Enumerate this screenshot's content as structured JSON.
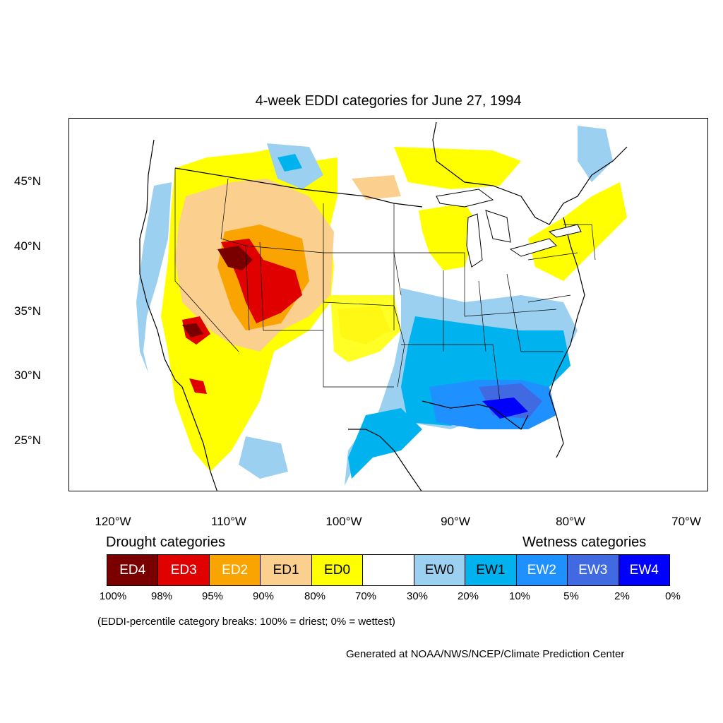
{
  "title": "4-week EDDI categories for June 27, 1994",
  "map": {
    "lat_ticks": [
      "45°N",
      "40°N",
      "35°N",
      "30°N",
      "25°N"
    ],
    "lon_ticks": [
      "120°W",
      "110°W",
      "100°W",
      "90°W",
      "80°W",
      "70°W"
    ],
    "colors": {
      "ED4": "#7a0000",
      "ED3": "#e00000",
      "ED2": "#f9a400",
      "ED1": "#fbd08e",
      "ED0": "#ffff00",
      "neutral": "#ffffff",
      "EW0": "#9bd0f0",
      "EW1": "#00b2ee",
      "EW2": "#1e90ff",
      "EW3": "#4169e1",
      "EW4": "#0000ff"
    }
  },
  "legend": {
    "drought_heading": "Drought categories",
    "wetness_heading": "Wetness categories",
    "categories": [
      {
        "label": "ED4",
        "color": "#7a0000",
        "text_color": "#ffffff"
      },
      {
        "label": "ED3",
        "color": "#e00000",
        "text_color": "#ffffff"
      },
      {
        "label": "ED2",
        "color": "#f9a400",
        "text_color": "#ffffff"
      },
      {
        "label": "ED1",
        "color": "#fbd08e",
        "text_color": "#000000"
      },
      {
        "label": "ED0",
        "color": "#ffff00",
        "text_color": "#000000"
      },
      {
        "label": "",
        "color": "#ffffff",
        "text_color": "#000000"
      },
      {
        "label": "EW0",
        "color": "#9bd0f0",
        "text_color": "#000000"
      },
      {
        "label": "EW1",
        "color": "#00b2ee",
        "text_color": "#000000"
      },
      {
        "label": "EW2",
        "color": "#1e90ff",
        "text_color": "#ffffff"
      },
      {
        "label": "EW3",
        "color": "#4169e1",
        "text_color": "#ffffff"
      },
      {
        "label": "EW4",
        "color": "#0000ff",
        "text_color": "#ffffff"
      }
    ],
    "percent_breaks": [
      "100%",
      "98%",
      "95%",
      "90%",
      "80%",
      "70%",
      "30%",
      "20%",
      "10%",
      "5%",
      "2%",
      "0%"
    ],
    "note": "(EDDI-percentile category breaks: 100% = driest; 0% = wettest)"
  },
  "credit": "Generated at NOAA/NWS/NCEP/Climate Prediction Center"
}
